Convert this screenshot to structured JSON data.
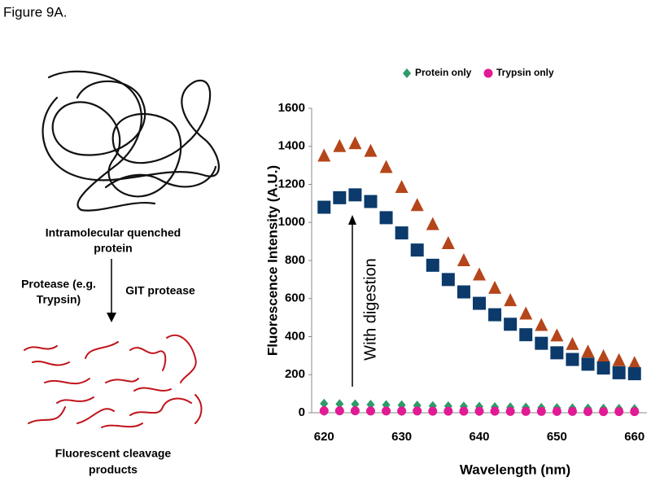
{
  "figure_label": "Figure 9A.",
  "diagram": {
    "top_label": [
      "Intramolecular quenched",
      "protein"
    ],
    "left_label": [
      "Protease (e.g.",
      "Trypsin)"
    ],
    "right_label": "GIT protease",
    "bottom_label": [
      "Fluorescent cleavage",
      "products"
    ]
  },
  "chart_data": {
    "type": "scatter",
    "x_label": "Wavelength (nm)",
    "y_label": "Fluorescence Intensity (A.U.)",
    "annotation": "With digestion",
    "xlim": [
      618.4,
      661.6
    ],
    "xticks": [
      620,
      630,
      640,
      650,
      660
    ],
    "ylim": [
      0,
      1600
    ],
    "yticks": [
      0,
      200,
      400,
      600,
      800,
      1000,
      1200,
      1400,
      1600
    ],
    "grid": false,
    "legend": "top",
    "x": [
      620,
      622,
      624,
      626,
      628,
      630,
      632,
      634,
      636,
      638,
      640,
      642,
      644,
      646,
      648,
      650,
      652,
      654,
      656,
      658,
      660
    ],
    "series": [
      {
        "marker": "triangle",
        "color": "#b5461a",
        "values": [
          1350,
          1400,
          1415,
          1375,
          1290,
          1185,
          1090,
          990,
          890,
          800,
          725,
          655,
          590,
          520,
          460,
          405,
          360,
          320,
          295,
          275,
          260
        ]
      },
      {
        "marker": "square",
        "color": "#0b3a6b",
        "values": [
          1080,
          1130,
          1145,
          1110,
          1025,
          945,
          855,
          775,
          700,
          635,
          575,
          515,
          465,
          410,
          365,
          315,
          280,
          255,
          235,
          210,
          205
        ]
      },
      {
        "name": "Protein only",
        "marker": "diamond",
        "color": "#2e9b6a",
        "values": [
          48,
          46,
          45,
          43,
          41,
          40,
          38,
          36,
          35,
          33,
          32,
          30,
          29,
          28,
          26,
          25,
          24,
          23,
          22,
          21,
          20
        ]
      },
      {
        "name": "Trypsin only",
        "marker": "circle",
        "color": "#e21a94",
        "values": [
          10,
          10,
          10,
          9,
          9,
          9,
          9,
          8,
          8,
          8,
          8,
          8,
          7,
          7,
          7,
          7,
          7,
          6,
          6,
          6,
          6
        ]
      }
    ]
  }
}
